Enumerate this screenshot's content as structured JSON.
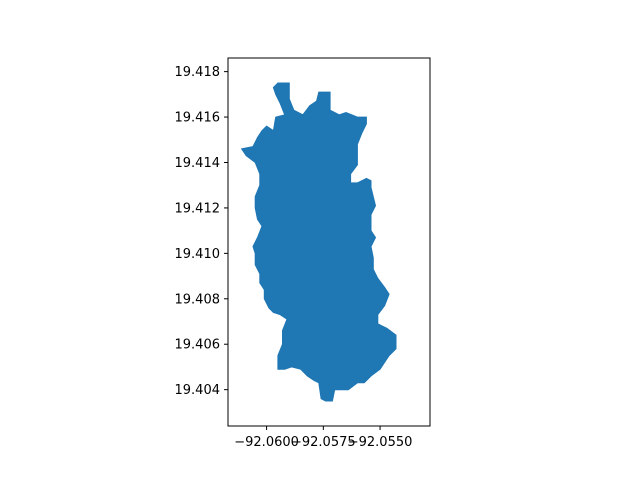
{
  "chart_data": {
    "type": "map",
    "title": "",
    "xlabel": "",
    "ylabel": "",
    "x_ticks": [
      "−92.0600",
      "−92.0575",
      "−92.0550"
    ],
    "x_tick_values": [
      -92.06,
      -92.0575,
      -92.055
    ],
    "y_ticks": [
      "19.404",
      "19.406",
      "19.408",
      "19.410",
      "19.412",
      "19.414",
      "19.416",
      "19.418"
    ],
    "y_tick_values": [
      19.404,
      19.406,
      19.408,
      19.41,
      19.412,
      19.414,
      19.416,
      19.418
    ],
    "xlim": [
      -92.0617,
      -92.0528
    ],
    "ylim": [
      19.4024,
      19.4186
    ],
    "grid": false,
    "fill_color": "#1f77b4",
    "polygon": [
      [
        -92.0595,
        19.4175
      ],
      [
        -92.059,
        19.4175
      ],
      [
        -92.059,
        19.4168
      ],
      [
        -92.0588,
        19.4163
      ],
      [
        -92.0584,
        19.4161
      ],
      [
        -92.0581,
        19.4165
      ],
      [
        -92.0578,
        19.4167
      ],
      [
        -92.0577,
        19.4171
      ],
      [
        -92.0572,
        19.4171
      ],
      [
        -92.0572,
        19.4163
      ],
      [
        -92.0568,
        19.4161
      ],
      [
        -92.0565,
        19.4162
      ],
      [
        -92.056,
        19.416
      ],
      [
        -92.0556,
        19.416
      ],
      [
        -92.0556,
        19.4157
      ],
      [
        -92.0558,
        19.4153
      ],
      [
        -92.056,
        19.4148
      ],
      [
        -92.056,
        19.4139
      ],
      [
        -92.0563,
        19.4135
      ],
      [
        -92.0563,
        19.4131
      ],
      [
        -92.056,
        19.4131
      ],
      [
        -92.0556,
        19.4133
      ],
      [
        -92.0554,
        19.4132
      ],
      [
        -92.0554,
        19.4129
      ],
      [
        -92.0552,
        19.4121
      ],
      [
        -92.0554,
        19.4117
      ],
      [
        -92.0554,
        19.411
      ],
      [
        -92.0552,
        19.4107
      ],
      [
        -92.0554,
        19.4103
      ],
      [
        -92.0553,
        19.4098
      ],
      [
        -92.0553,
        19.4093
      ],
      [
        -92.0551,
        19.4089
      ],
      [
        -92.0548,
        19.4085
      ],
      [
        -92.0546,
        19.4082
      ],
      [
        -92.0548,
        19.4077
      ],
      [
        -92.0551,
        19.4073
      ],
      [
        -92.0551,
        19.4069
      ],
      [
        -92.0547,
        19.4067
      ],
      [
        -92.0543,
        19.4064
      ],
      [
        -92.0543,
        19.4058
      ],
      [
        -92.0546,
        19.4055
      ],
      [
        -92.0548,
        19.4052
      ],
      [
        -92.055,
        19.4049
      ],
      [
        -92.0554,
        19.4046
      ],
      [
        -92.0557,
        19.4043
      ],
      [
        -92.056,
        19.4043
      ],
      [
        -92.0564,
        19.404
      ],
      [
        -92.057,
        19.404
      ],
      [
        -92.0571,
        19.4035
      ],
      [
        -92.0574,
        19.4035
      ],
      [
        -92.0576,
        19.4036
      ],
      [
        -92.0577,
        19.4043
      ],
      [
        -92.0579,
        19.4044
      ],
      [
        -92.0582,
        19.4046
      ],
      [
        -92.0585,
        19.4049
      ],
      [
        -92.0589,
        19.405
      ],
      [
        -92.0592,
        19.4049
      ],
      [
        -92.0595,
        19.4049
      ],
      [
        -92.0595,
        19.4055
      ],
      [
        -92.0593,
        19.406
      ],
      [
        -92.0593,
        19.4066
      ],
      [
        -92.0591,
        19.4071
      ],
      [
        -92.0594,
        19.4073
      ],
      [
        -92.0597,
        19.4074
      ],
      [
        -92.0599,
        19.4076
      ],
      [
        -92.0601,
        19.408
      ],
      [
        -92.0601,
        19.4084
      ],
      [
        -92.0603,
        19.4087
      ],
      [
        -92.0603,
        19.4091
      ],
      [
        -92.0605,
        19.4095
      ],
      [
        -92.0605,
        19.41
      ],
      [
        -92.0606,
        19.4103
      ],
      [
        -92.0604,
        19.4107
      ],
      [
        -92.0602,
        19.4112
      ],
      [
        -92.0604,
        19.4115
      ],
      [
        -92.0605,
        19.412
      ],
      [
        -92.0605,
        19.4125
      ],
      [
        -92.0603,
        19.413
      ],
      [
        -92.0603,
        19.4135
      ],
      [
        -92.0605,
        19.414
      ],
      [
        -92.0609,
        19.4143
      ],
      [
        -92.0611,
        19.4146
      ],
      [
        -92.0606,
        19.4147
      ],
      [
        -92.0604,
        19.4151
      ],
      [
        -92.0602,
        19.4154
      ],
      [
        -92.06,
        19.4156
      ],
      [
        -92.0597,
        19.4154
      ],
      [
        -92.0596,
        19.416
      ],
      [
        -92.0592,
        19.4161
      ],
      [
        -92.0594,
        19.4166
      ],
      [
        -92.0596,
        19.417
      ],
      [
        -92.0597,
        19.4173
      ],
      [
        -92.0595,
        19.4175
      ]
    ]
  }
}
